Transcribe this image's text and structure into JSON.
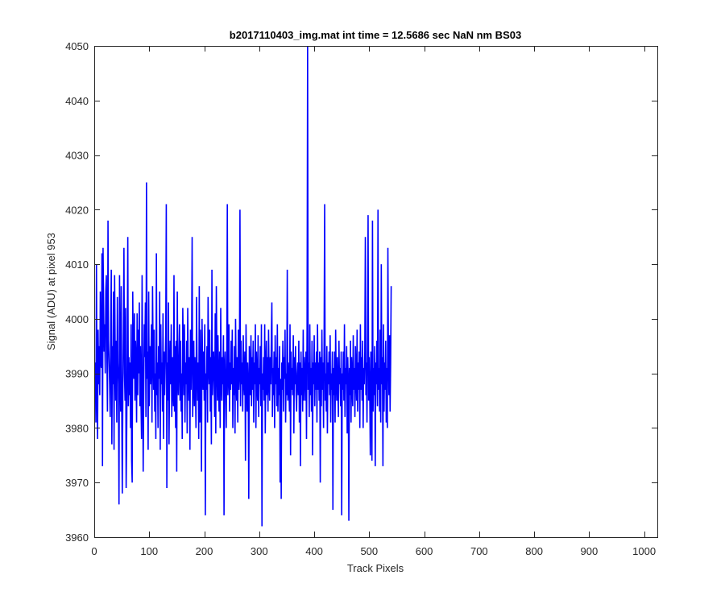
{
  "window": {
    "background": "#ffffff"
  },
  "chart_data": {
    "type": "line",
    "title": "b2017110403_img.mat int time = 12.5686 sec  NaN nm BS03",
    "xlabel": "Track Pixels",
    "ylabel": "Signal (ADU) at pixel 953",
    "xlim": [
      0,
      1024
    ],
    "ylim": [
      3960,
      4050
    ],
    "grid": false,
    "legend": "none",
    "xticks": [
      0,
      100,
      200,
      300,
      400,
      500,
      600,
      700,
      800,
      900,
      1000
    ],
    "xtick_labels": [
      "0",
      "100",
      "200",
      "300",
      "400",
      "500",
      "600",
      "700",
      "800",
      "900",
      "1000"
    ],
    "yticks": [
      3960,
      3970,
      3980,
      3990,
      4000,
      4010,
      4020,
      4030,
      4040,
      4050
    ],
    "ytick_labels": [
      "3960",
      "3970",
      "3980",
      "3990",
      "4000",
      "4010",
      "4020",
      "4030",
      "4040",
      "4050"
    ],
    "series": [
      {
        "color": "#0000ff",
        "x_start": 1,
        "x_step": 1,
        "values": [
          3989,
          3992,
          3981,
          4010,
          3987,
          3978,
          3998,
          3988,
          3995,
          3986,
          4005,
          3992,
          3991,
          4012,
          3973,
          4013,
          4003,
          3994,
          3999,
          3990,
          4005,
          4008,
          3994,
          3983,
          4018,
          3996,
          3992,
          3988,
          3982,
          3999,
          4009,
          3977,
          3995,
          3988,
          4005,
          3976,
          4008,
          3995,
          3985,
          3996,
          3981,
          4004,
          3992,
          3988,
          3966,
          4008,
          3992,
          3983,
          4006,
          3984,
          3968,
          3987,
          3998,
          4013,
          3990,
          3985,
          4002,
          3969,
          3979,
          3994,
          4015,
          3984,
          3993,
          3986,
          3992,
          3980,
          3999,
          3974,
          3970,
          4005,
          3993,
          3989,
          4001,
          3985,
          3996,
          3992,
          3981,
          4001,
          3986,
          3998,
          3990,
          4003,
          3984,
          3995,
          3985,
          3978,
          4008,
          3991,
          3972,
          3987,
          3999,
          3993,
          4003,
          3982,
          4025,
          3989,
          3994,
          3976,
          4005,
          3984,
          3995,
          3988,
          3992,
          3999,
          3981,
          4006,
          3994,
          3987,
          3998,
          3983,
          3990,
          3978,
          4012,
          3986,
          3992,
          3980,
          3995,
          3989,
          4005,
          3976,
          3999,
          3988,
          3992,
          3983,
          4001,
          3978,
          3994,
          3986,
          3991,
          3997,
          4021,
          3969,
          3992,
          3985,
          4003,
          3977,
          3990,
          3996,
          3988,
          3999,
          3982,
          3993,
          3987,
          3984,
          4008,
          3983,
          3995,
          3980,
          3996,
          3972,
          4005,
          3991,
          3986,
          3992,
          3999,
          3985,
          3996,
          3983,
          3990,
          3978,
          4002,
          3994,
          3986,
          3999,
          3981,
          3992,
          3988,
          3996,
          3979,
          4002,
          3990,
          3985,
          3993,
          3976,
          3998,
          3987,
          3994,
          4015,
          3982,
          3989,
          3996,
          3984,
          3993,
          3988,
          3980,
          4004,
          3991,
          3985,
          3992,
          3978,
          4006,
          3981,
          3998,
          3989,
          3972,
          4000,
          3992,
          3987,
          3994,
          3985,
          3999,
          3964,
          3990,
          3987,
          3995,
          3981,
          4004,
          3992,
          3988,
          3998,
          3983,
          3993,
          3977,
          4009,
          3986,
          3990,
          3994,
          3989,
          3982,
          4001,
          3979,
          4006,
          3993,
          3985,
          3997,
          3988,
          3983,
          3994,
          3980,
          4002,
          3989,
          3985,
          3993,
          3988,
          3997,
          3964,
          3991,
          3994,
          3987,
          3980,
          3993,
          4021,
          3986,
          3990,
          3999,
          3983,
          3992,
          3987,
          3996,
          3988,
          3998,
          3980,
          3991,
          3986,
          3995,
          3979,
          4000,
          3990,
          3985,
          3993,
          3981,
          3998,
          3987,
          3990,
          4020,
          3984,
          3996,
          3988,
          3992,
          3983,
          3997,
          3989,
          3986,
          3994,
          3974,
          3999,
          3990,
          3983,
          3992,
          3988,
          3967,
          3995,
          3990,
          3986,
          3997,
          3984,
          3993,
          3987,
          3996,
          3981,
          3992,
          3988,
          3999,
          3980,
          3994,
          3989,
          3985,
          3997,
          3982,
          3991,
          3988,
          3995,
          3984,
          3999,
          3962,
          3990,
          3987,
          3993,
          3985,
          3999,
          3979,
          3991,
          3996,
          3986,
          3993,
          3983,
          3998,
          3989,
          3985,
          3993,
          3988,
          3996,
          4003,
          3982,
          3991,
          3986,
          3994,
          3980,
          3997,
          3988,
          3993,
          3984,
          3999,
          3983,
          3991,
          3986,
          3995,
          3970,
          3989,
          3967,
          3992,
          3987,
          3996,
          3983,
          3993,
          3989,
          3998,
          3981,
          3990,
          3986,
          4009,
          3985,
          3992,
          3988,
          3983,
          3999,
          3975,
          3994,
          3987,
          3991,
          3986,
          3997,
          3979,
          3993,
          3988,
          3995,
          3986,
          3983,
          3990,
          3992,
          3986,
          3996,
          3981,
          3992,
          3973,
          3994,
          3986,
          3991,
          3983,
          3998,
          3985,
          3993,
          3990,
          3985,
          3994,
          3978,
          3998,
          4050,
          3987,
          3992,
          3982,
          3999,
          3986,
          3991,
          3983,
          3996,
          3975,
          3992,
          3988,
          3997,
          3984,
          3992,
          3987,
          3994,
          3981,
          3999,
          3987,
          3992,
          3985,
          3994,
          3970,
          3993,
          3984,
          3998,
          3987,
          3992,
          3980,
          3996,
          4021,
          3985,
          3990,
          3983,
          3995,
          3979,
          3992,
          3988,
          3994,
          3986,
          3997,
          3981,
          3990,
          3987,
          3994,
          3965,
          3991,
          3986,
          3994,
          3981,
          3998,
          3989,
          3985,
          3993,
          3987,
          3982,
          3996,
          3988,
          3991,
          3984,
          3994,
          3964,
          3990,
          3987,
          3994,
          3985,
          3999,
          3982,
          3991,
          3988,
          3995,
          3979,
          3993,
          3988,
          3963,
          3991,
          3986,
          3996,
          3981,
          3993,
          3989,
          3984,
          3997,
          3987,
          3991,
          3982,
          3995,
          3990,
          3985,
          3998,
          3983,
          3992,
          3987,
          3994,
          3980,
          3999,
          3987,
          3993,
          3985,
          3996,
          3980,
          3991,
          3988,
          3994,
          4015,
          3986,
          3992,
          3981,
          3998,
          4019,
          3985,
          3993,
          3987,
          3975,
          3994,
          3988,
          3974,
          4018,
          3983,
          3991,
          3986,
          3995,
          3973,
          3992,
          3988,
          3996,
          3984,
          4020,
          3987,
          3991,
          3983,
          3998,
          3981,
          4010,
          3988,
          3993,
          3973,
          3999,
          3983,
          3992,
          3987,
          3996,
          3981,
          3991,
          3980,
          4013,
          3993,
          3986,
          3997,
          3983,
          3992,
          4006
        ]
      }
    ]
  }
}
